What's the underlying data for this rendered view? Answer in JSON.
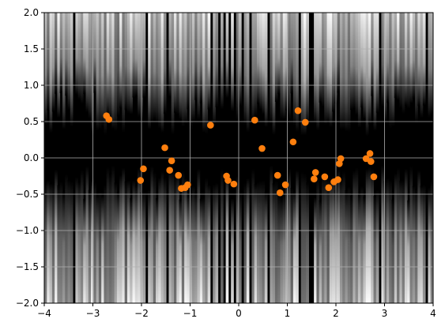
{
  "chart_data": {
    "type": "scatter",
    "title": "",
    "xlabel": "",
    "ylabel": "",
    "xlim": [
      -4,
      4
    ],
    "ylim": [
      -2,
      2
    ],
    "x_ticks": [
      -4,
      -3,
      -2,
      -1,
      0,
      1,
      2,
      3,
      4
    ],
    "x_tick_labels": [
      "−4",
      "−3",
      "−2",
      "−1",
      "0",
      "1",
      "2",
      "3",
      "4"
    ],
    "y_ticks": [
      -2.0,
      -1.5,
      -1.0,
      -0.5,
      0.0,
      0.5,
      1.0,
      1.5,
      2.0
    ],
    "y_tick_labels": [
      "−2.0",
      "−1.5",
      "−1.0",
      "−0.5",
      "0.0",
      "0.5",
      "1.0",
      "1.5",
      "2.0"
    ],
    "grid": true,
    "legend": false,
    "background": "grayscale density (black = high density band around y≈0, white/gray streaks toward y=±2)",
    "series": [
      {
        "color": "#ff7f0e",
        "marker": "circle",
        "points": [
          {
            "x": -2.72,
            "y": 0.58
          },
          {
            "x": -2.67,
            "y": 0.53
          },
          {
            "x": -2.02,
            "y": -0.31
          },
          {
            "x": -1.96,
            "y": -0.15
          },
          {
            "x": -1.52,
            "y": 0.14
          },
          {
            "x": -1.42,
            "y": -0.17
          },
          {
            "x": -1.38,
            "y": -0.04
          },
          {
            "x": -1.24,
            "y": -0.24
          },
          {
            "x": -1.18,
            "y": -0.42
          },
          {
            "x": -1.1,
            "y": -0.41
          },
          {
            "x": -1.05,
            "y": -0.37
          },
          {
            "x": -0.58,
            "y": 0.45
          },
          {
            "x": -0.25,
            "y": -0.25
          },
          {
            "x": -0.22,
            "y": -0.31
          },
          {
            "x": -0.1,
            "y": -0.36
          },
          {
            "x": 0.33,
            "y": 0.52
          },
          {
            "x": 0.48,
            "y": 0.13
          },
          {
            "x": 0.8,
            "y": -0.24
          },
          {
            "x": 0.85,
            "y": -0.48
          },
          {
            "x": 0.96,
            "y": -0.37
          },
          {
            "x": 1.12,
            "y": 0.22
          },
          {
            "x": 1.22,
            "y": 0.65
          },
          {
            "x": 1.37,
            "y": 0.49
          },
          {
            "x": 1.55,
            "y": -0.29
          },
          {
            "x": 1.58,
            "y": -0.2
          },
          {
            "x": 1.77,
            "y": -0.26
          },
          {
            "x": 1.85,
            "y": -0.41
          },
          {
            "x": 1.96,
            "y": -0.33
          },
          {
            "x": 2.04,
            "y": -0.3
          },
          {
            "x": 2.07,
            "y": -0.08
          },
          {
            "x": 2.1,
            "y": -0.01
          },
          {
            "x": 2.62,
            "y": -0.01
          },
          {
            "x": 2.7,
            "y": 0.06
          },
          {
            "x": 2.72,
            "y": -0.05
          },
          {
            "x": 2.78,
            "y": -0.26
          }
        ]
      }
    ]
  }
}
